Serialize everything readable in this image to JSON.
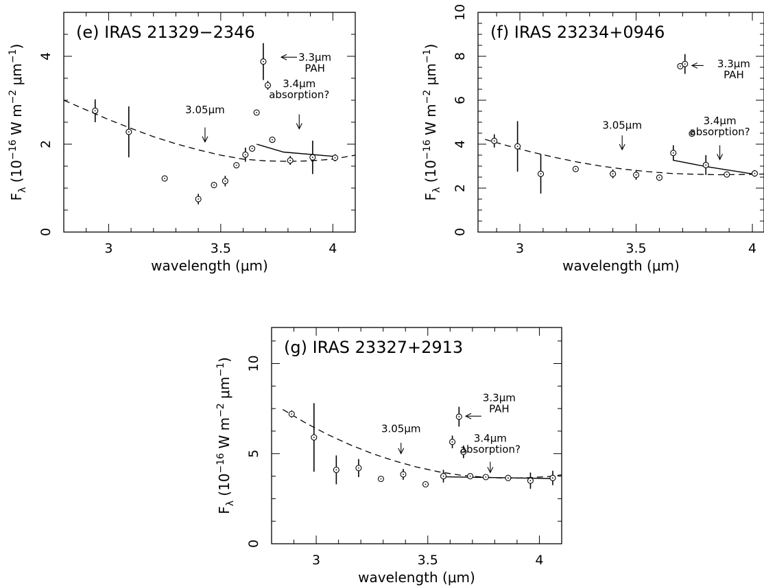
{
  "chart_data": [
    {
      "type": "scatter",
      "title": "(e) IRAS 21329−2346",
      "xlabel": "wavelength (μm)",
      "ylabel_parts": {
        "base": "F",
        "sub": "λ",
        "unit_a": " (10",
        "exp_a": "−16",
        "unit_b": " W m",
        "exp_b": "−2",
        "unit_c": " μm",
        "exp_c": "−1",
        "unit_d": ")"
      },
      "xlim": [
        2.8,
        4.1
      ],
      "ylim": [
        0,
        5
      ],
      "xticks": [
        3,
        3.5,
        4
      ],
      "xtick_labels": [
        "3",
        "3.5",
        "4"
      ],
      "yticks": [
        0,
        2,
        4
      ],
      "ytick_labels": [
        "0",
        "2",
        "4"
      ],
      "points": [
        {
          "x": 2.94,
          "y": 2.76,
          "err": 0.26
        },
        {
          "x": 3.09,
          "y": 2.28,
          "err": 0.58
        },
        {
          "x": 3.25,
          "y": 1.22,
          "err": 0
        },
        {
          "x": 3.4,
          "y": 0.75,
          "err": 0.12
        },
        {
          "x": 3.47,
          "y": 1.07,
          "err": 0
        },
        {
          "x": 3.52,
          "y": 1.16,
          "err": 0.12
        },
        {
          "x": 3.57,
          "y": 1.52,
          "err": 0
        },
        {
          "x": 3.61,
          "y": 1.76,
          "err": 0.16
        },
        {
          "x": 3.64,
          "y": 1.9,
          "err": 0
        },
        {
          "x": 3.66,
          "y": 2.72,
          "err": 0
        },
        {
          "x": 3.69,
          "y": 3.88,
          "err": 0.42
        },
        {
          "x": 3.71,
          "y": 3.34,
          "err": 0.1
        },
        {
          "x": 3.73,
          "y": 2.1,
          "err": 0
        },
        {
          "x": 3.81,
          "y": 1.63,
          "err": 0.1
        },
        {
          "x": 3.91,
          "y": 1.7,
          "err": 0.38
        },
        {
          "x": 4.01,
          "y": 1.69,
          "err": 0.08
        }
      ],
      "dashed_fit": [
        [
          2.8,
          3.0
        ],
        [
          2.9,
          2.78
        ],
        [
          3.0,
          2.56
        ],
        [
          3.1,
          2.36
        ],
        [
          3.2,
          2.17
        ],
        [
          3.3,
          2.01
        ],
        [
          3.4,
          1.87
        ],
        [
          3.5,
          1.75
        ],
        [
          3.6,
          1.66
        ],
        [
          3.7,
          1.62
        ],
        [
          3.8,
          1.61
        ],
        [
          3.9,
          1.62
        ],
        [
          4.0,
          1.66
        ],
        [
          4.1,
          1.75
        ]
      ],
      "solid_fit": [
        [
          3.66,
          2.0
        ],
        [
          3.78,
          1.82
        ],
        [
          4.01,
          1.72
        ]
      ],
      "annotations": [
        {
          "text": "3.3μm",
          "text2": "PAH",
          "tx": 3.92,
          "ty": 3.9,
          "arrow": "left",
          "ax": 3.77,
          "ay": 3.98,
          "bx": 3.84,
          "by": 3.98
        },
        {
          "text": "3.05μm",
          "text2": "",
          "tx": 3.43,
          "ty": 2.7,
          "arrow": "down",
          "ax": 3.43,
          "ay": 2.38,
          "bx": 3.43,
          "by": 2.05
        },
        {
          "text": "3.4μm",
          "text2": "absorption?",
          "tx": 3.85,
          "ty": 3.3,
          "arrow": "down",
          "ax": 3.85,
          "ay": 2.68,
          "bx": 3.85,
          "by": 2.35
        }
      ]
    },
    {
      "type": "scatter",
      "title": "(f) IRAS 23234+0946",
      "xlabel": "wavelength (μm)",
      "ylabel_parts": {
        "base": "F",
        "sub": "λ",
        "unit_a": " (10",
        "exp_a": "−16",
        "unit_b": " W m",
        "exp_b": "−2",
        "unit_c": " μm",
        "exp_c": "−1",
        "unit_d": ")"
      },
      "xlim": [
        2.82,
        4.05
      ],
      "ylim": [
        0,
        10
      ],
      "xticks": [
        3,
        3.5,
        4
      ],
      "xtick_labels": [
        "3",
        "3.5",
        "4"
      ],
      "yticks": [
        0,
        2,
        4,
        6,
        8,
        10
      ],
      "ytick_labels": [
        "0",
        "2",
        "4",
        "6",
        "8",
        "10"
      ],
      "points": [
        {
          "x": 2.89,
          "y": 4.15,
          "err": 0.3
        },
        {
          "x": 2.99,
          "y": 3.9,
          "err": 1.15
        },
        {
          "x": 3.09,
          "y": 2.65,
          "err": 0.9
        },
        {
          "x": 3.24,
          "y": 2.87,
          "err": 0
        },
        {
          "x": 3.4,
          "y": 2.65,
          "err": 0.2
        },
        {
          "x": 3.5,
          "y": 2.6,
          "err": 0.22
        },
        {
          "x": 3.6,
          "y": 2.48,
          "err": 0
        },
        {
          "x": 3.66,
          "y": 3.6,
          "err": 0.35
        },
        {
          "x": 3.69,
          "y": 7.55,
          "err": 0
        },
        {
          "x": 3.71,
          "y": 7.65,
          "err": 0.45
        },
        {
          "x": 3.74,
          "y": 4.48,
          "err": 0
        },
        {
          "x": 3.8,
          "y": 3.05,
          "err": 0.45
        },
        {
          "x": 3.89,
          "y": 2.62,
          "err": 0
        },
        {
          "x": 4.01,
          "y": 2.67,
          "err": 0.15
        }
      ],
      "dashed_fit": [
        [
          2.85,
          4.22
        ],
        [
          2.95,
          3.92
        ],
        [
          3.05,
          3.64
        ],
        [
          3.15,
          3.4
        ],
        [
          3.25,
          3.18
        ],
        [
          3.35,
          3.0
        ],
        [
          3.45,
          2.86
        ],
        [
          3.55,
          2.75
        ],
        [
          3.65,
          2.67
        ],
        [
          3.75,
          2.63
        ],
        [
          3.85,
          2.61
        ],
        [
          3.95,
          2.62
        ],
        [
          4.05,
          2.64
        ]
      ],
      "solid_fit": [
        [
          3.66,
          3.27
        ],
        [
          3.8,
          2.98
        ],
        [
          4.01,
          2.63
        ]
      ],
      "annotations": [
        {
          "text": "3.3μm",
          "text2": "PAH",
          "tx": 3.92,
          "ty": 7.5,
          "arrow": "left",
          "ax": 3.74,
          "ay": 7.58,
          "bx": 3.79,
          "by": 7.58
        },
        {
          "text": "3.05μm",
          "text2": "",
          "tx": 3.44,
          "ty": 4.7,
          "arrow": "down",
          "ax": 3.44,
          "ay": 4.4,
          "bx": 3.44,
          "by": 3.75
        },
        {
          "text": "3.4μm",
          "text2": "absorption?",
          "tx": 3.86,
          "ty": 4.9,
          "arrow": "down",
          "ax": 3.86,
          "ay": 3.95,
          "bx": 3.86,
          "by": 3.3
        }
      ]
    },
    {
      "type": "scatter",
      "title": "(g) IRAS 23327+2913",
      "xlabel": "wavelength (μm)",
      "ylabel_parts": {
        "base": "F",
        "sub": "λ",
        "unit_a": " (10",
        "exp_a": "−16",
        "unit_b": " W m",
        "exp_b": "−2",
        "unit_c": " μm",
        "exp_c": "−1",
        "unit_d": ")"
      },
      "xlim": [
        2.8,
        4.1
      ],
      "ylim": [
        0,
        12
      ],
      "xticks": [
        3,
        3.5,
        4
      ],
      "xtick_labels": [
        "3",
        "3.5",
        "4"
      ],
      "yticks": [
        0,
        5,
        10
      ],
      "ytick_labels": [
        "0",
        "5",
        "10"
      ],
      "points": [
        {
          "x": 2.89,
          "y": 7.2,
          "err": 0.2
        },
        {
          "x": 2.99,
          "y": 5.9,
          "err": 1.9
        },
        {
          "x": 3.09,
          "y": 4.1,
          "err": 0.8
        },
        {
          "x": 3.19,
          "y": 4.2,
          "err": 0.5
        },
        {
          "x": 3.29,
          "y": 3.6,
          "err": 0
        },
        {
          "x": 3.39,
          "y": 3.85,
          "err": 0.3
        },
        {
          "x": 3.49,
          "y": 3.3,
          "err": 0.15
        },
        {
          "x": 3.57,
          "y": 3.75,
          "err": 0.35
        },
        {
          "x": 3.61,
          "y": 5.65,
          "err": 0.35
        },
        {
          "x": 3.64,
          "y": 7.05,
          "err": 0.55
        },
        {
          "x": 3.66,
          "y": 5.1,
          "err": 0.35
        },
        {
          "x": 3.69,
          "y": 3.75,
          "err": 0.1
        },
        {
          "x": 3.76,
          "y": 3.7,
          "err": 0.1
        },
        {
          "x": 3.86,
          "y": 3.65,
          "err": 0
        },
        {
          "x": 3.96,
          "y": 3.5,
          "err": 0.45
        },
        {
          "x": 4.06,
          "y": 3.65,
          "err": 0.4
        }
      ],
      "dashed_fit": [
        [
          2.85,
          7.45
        ],
        [
          2.95,
          6.72
        ],
        [
          3.05,
          6.07
        ],
        [
          3.15,
          5.5
        ],
        [
          3.25,
          5.01
        ],
        [
          3.35,
          4.6
        ],
        [
          3.45,
          4.26
        ],
        [
          3.55,
          3.99
        ],
        [
          3.65,
          3.8
        ],
        [
          3.75,
          3.69
        ],
        [
          3.85,
          3.64
        ],
        [
          3.95,
          3.66
        ],
        [
          4.05,
          3.74
        ],
        [
          4.1,
          3.82
        ]
      ],
      "solid_fit": [
        [
          3.56,
          3.72
        ],
        [
          4.06,
          3.62
        ]
      ],
      "annotations": [
        {
          "text": "3.3μm",
          "text2": "PAH",
          "tx": 3.82,
          "ty": 7.9,
          "arrow": "left",
          "ax": 3.67,
          "ay": 7.08,
          "bx": 3.74,
          "by": 7.08
        },
        {
          "text": "3.05μm",
          "text2": "",
          "tx": 3.38,
          "ty": 6.2,
          "arrow": "down",
          "ax": 3.38,
          "ay": 5.6,
          "bx": 3.38,
          "by": 5.0
        },
        {
          "text": "3.4μm",
          "text2": "absorption?",
          "tx": 3.78,
          "ty": 5.65,
          "arrow": "down",
          "ax": 3.78,
          "ay": 4.55,
          "bx": 3.78,
          "by": 3.95
        }
      ]
    }
  ]
}
